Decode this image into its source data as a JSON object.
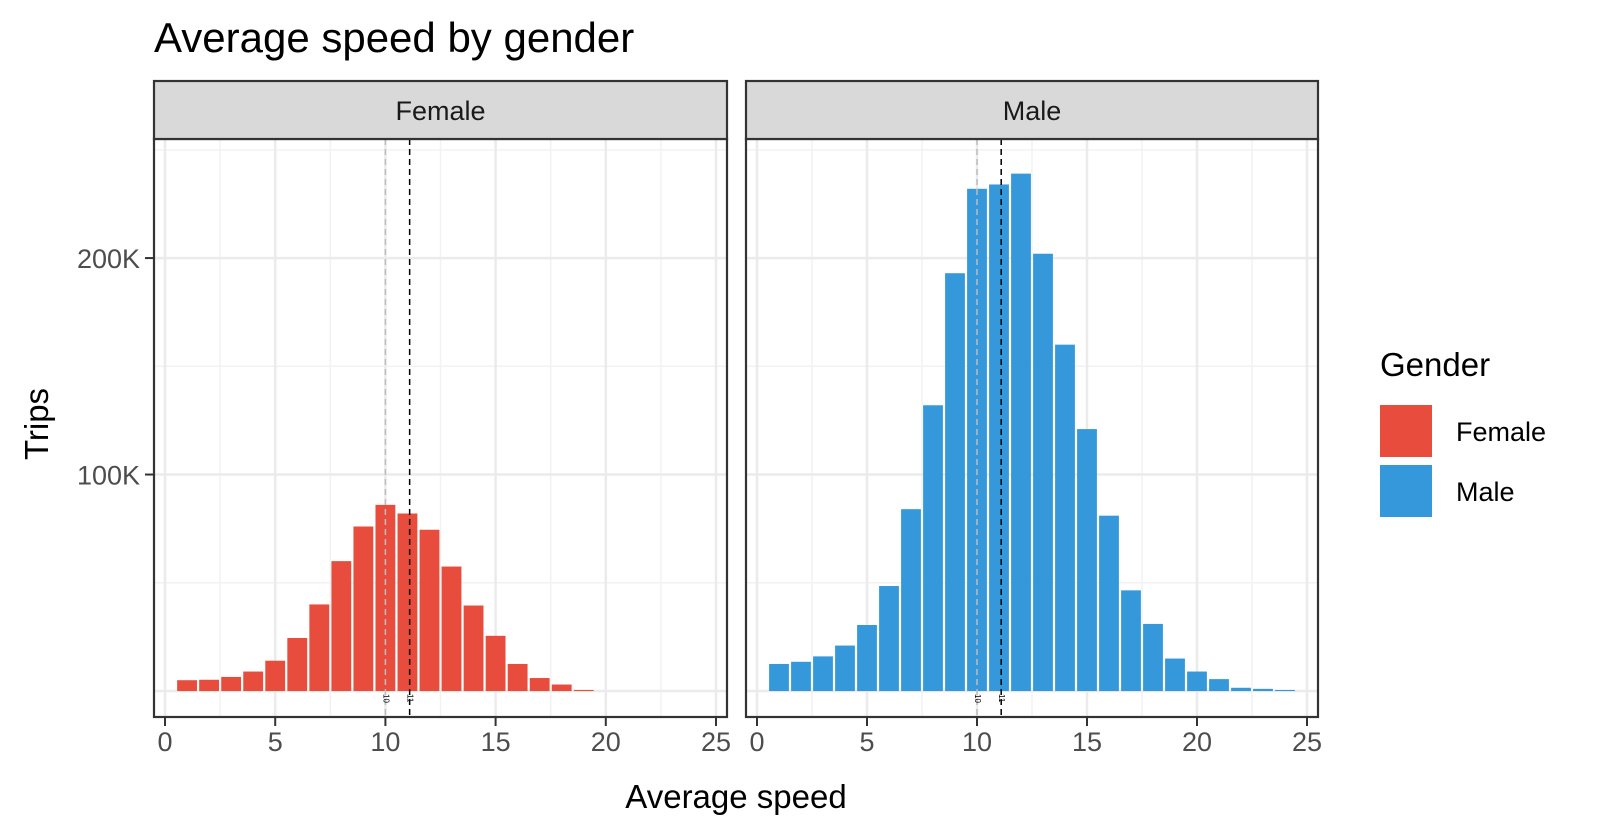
{
  "chart_data": {
    "type": "bar",
    "title": "Average speed by gender",
    "xlabel": "Average speed",
    "ylabel": "Trips",
    "xlim": [
      -0.5,
      25.5
    ],
    "ylim": [
      -12000,
      255000
    ],
    "x_ticks": [
      0,
      5,
      10,
      15,
      20,
      25
    ],
    "y_ticks": [
      {
        "value": 100000,
        "label": "100K"
      },
      {
        "value": 200000,
        "label": "200K"
      }
    ],
    "grid": true,
    "legend": {
      "title": "Gender",
      "position": "right",
      "entries": [
        {
          "label": "Female",
          "color": "#E74C3C"
        },
        {
          "label": "Male",
          "color": "#3498DB"
        }
      ]
    },
    "reference_lines": [
      {
        "x": 10.0,
        "style": "dashed",
        "color": "#bdbdbd",
        "label": "10"
      },
      {
        "x": 11.1,
        "style": "dashed",
        "color": "#000000",
        "label": "11"
      }
    ],
    "x": [
      1,
      2,
      3,
      4,
      5,
      6,
      7,
      8,
      9,
      10,
      11,
      12,
      13,
      14,
      15,
      16,
      17,
      18,
      19,
      20,
      21,
      22,
      23,
      24
    ],
    "panels": [
      {
        "strip": "Female",
        "color": "#E74C3C",
        "values": [
          5000,
          5200,
          6500,
          9000,
          14000,
          24500,
          40000,
          60000,
          76000,
          86000,
          82000,
          74500,
          57500,
          39500,
          25500,
          12500,
          6000,
          3000,
          500,
          0,
          0,
          0,
          0,
          0
        ]
      },
      {
        "strip": "Male",
        "color": "#3498DB",
        "values": [
          12500,
          13500,
          16000,
          21000,
          30500,
          48500,
          84000,
          132000,
          193000,
          232000,
          234000,
          239000,
          202000,
          160000,
          121000,
          81000,
          46500,
          31000,
          15000,
          9000,
          5500,
          1500,
          1000,
          500
        ]
      }
    ]
  }
}
